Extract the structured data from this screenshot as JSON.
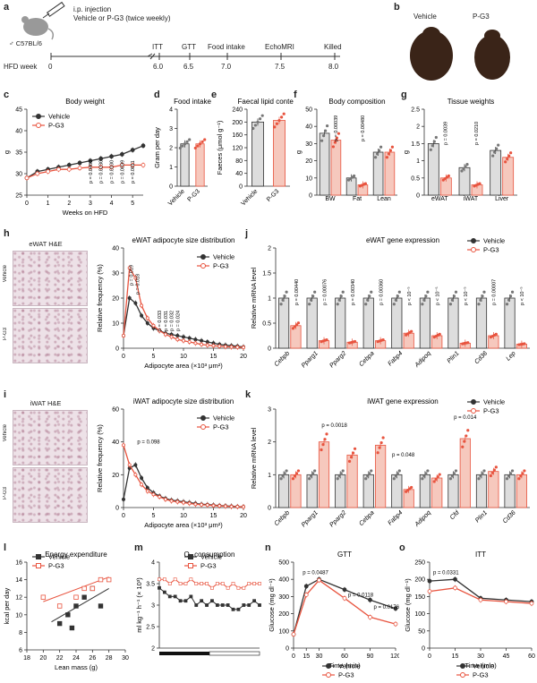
{
  "panel_labels": {
    "a": "a",
    "b": "b",
    "c": "c",
    "d": "d",
    "e": "e",
    "f": "f",
    "g": "g",
    "h": "h",
    "i": "i",
    "j": "j",
    "k": "k",
    "l": "l",
    "m": "m",
    "n": "n",
    "o": "o"
  },
  "colors": {
    "vehicle": "#333333",
    "pg3": "#e8543f",
    "pg3_fill": "#f6c8bd",
    "vehicle_fill": "#dddddd"
  },
  "legend": {
    "vehicle": "Vehicle",
    "pg3": "P-G3"
  },
  "panel_a": {
    "mouse_strain": "♂ C57BL/6",
    "injection_line1": "i.p. injection",
    "injection_line2": "Vehicle or P-G3 (twice weekly)",
    "axis_label": "HFD week",
    "start_tick": "0",
    "events": [
      {
        "label": "ITT",
        "week": "6.0"
      },
      {
        "label": "GTT",
        "week": "6.5"
      },
      {
        "label": "Food intake",
        "week": "7.0"
      },
      {
        "label": "EchoMRI",
        "week": "7.5"
      },
      {
        "label": "Killed",
        "week": "8.0"
      }
    ]
  },
  "panel_b": {
    "vehicle": "Vehicle",
    "pg3": "P-G3"
  },
  "panel_h_images": {
    "title": "eWAT H&E",
    "row1": "Vehicle",
    "row2": "P-G3"
  },
  "panel_i_images": {
    "title": "iWAT H&E",
    "row1": "Vehicle",
    "row2": "P-G3"
  },
  "chart_data": [
    {
      "id": "c",
      "type": "line",
      "title": "Body weight",
      "xlabel": "Weeks on HFD",
      "ylabel": "g",
      "xlim": [
        0,
        5.5
      ],
      "ylim": [
        25,
        45
      ],
      "xticks": [
        0,
        1,
        2,
        3,
        4,
        5
      ],
      "yticks": [
        25,
        30,
        35,
        40,
        45
      ],
      "x": [
        0,
        0.5,
        1,
        1.5,
        2,
        2.5,
        3,
        3.5,
        4,
        4.5,
        5,
        5.5
      ],
      "series": [
        {
          "name": "Vehicle",
          "values": [
            29,
            30.5,
            31,
            31.5,
            32,
            32.5,
            33,
            33.5,
            34,
            34.5,
            35.5,
            36.5
          ]
        },
        {
          "name": "P-G3",
          "values": [
            29,
            30,
            30.5,
            31,
            31,
            31.3,
            31.5,
            31.5,
            31.5,
            32,
            32,
            32
          ]
        }
      ],
      "annotations": [
        "p = 0.0480",
        "p = 0.0230",
        "p = 0.0100",
        "p = 0.0039",
        "p = 0.0011"
      ]
    },
    {
      "id": "d",
      "type": "bar",
      "title": "Food intake",
      "ylabel": "Gram per day",
      "ylim": [
        0,
        4
      ],
      "yticks": [
        0,
        1,
        2,
        3,
        4
      ],
      "categories": [
        "Vehicle",
        "P-G3"
      ],
      "values": [
        2.2,
        2.2
      ]
    },
    {
      "id": "e",
      "type": "bar",
      "title": "Faecal lipid content",
      "ylabel": "Faeces (μmol g⁻¹)",
      "ylim": [
        0,
        240
      ],
      "yticks": [
        0,
        40,
        80,
        120,
        160,
        200,
        240
      ],
      "categories": [
        "Vehicle",
        "P-G3"
      ],
      "values": [
        200,
        205
      ]
    },
    {
      "id": "f",
      "type": "bar",
      "title": "Body composition",
      "ylabel": "g",
      "ylim": [
        0,
        50
      ],
      "yticks": [
        0,
        10,
        20,
        30,
        40,
        50
      ],
      "categories": [
        "BW",
        "Fat",
        "Lean"
      ],
      "series": [
        {
          "name": "Vehicle",
          "values": [
            36,
            10,
            25
          ]
        },
        {
          "name": "P-G3",
          "values": [
            32,
            6,
            25
          ]
        }
      ],
      "annotations": [
        "p = 0.00039",
        "p = 0.00480"
      ]
    },
    {
      "id": "g",
      "type": "bar",
      "title": "Tissue weights",
      "ylabel": "g",
      "ylim": [
        0,
        2.5
      ],
      "yticks": [
        0,
        0.5,
        1.0,
        1.5,
        2.0,
        2.5
      ],
      "categories": [
        "eWAT",
        "iWAT",
        "Liver"
      ],
      "series": [
        {
          "name": "Vehicle",
          "values": [
            1.5,
            0.8,
            1.3
          ]
        },
        {
          "name": "P-G3",
          "values": [
            0.5,
            0.3,
            1.1
          ]
        }
      ],
      "annotations": [
        "p = 0.0039",
        "p = 0.0210"
      ]
    },
    {
      "id": "h",
      "type": "line",
      "title": "eWAT adipocyte size distribution",
      "xlabel": "Adipocyte area (×10³ μm²)",
      "ylabel": "Relative frequency (%)",
      "xlim": [
        0,
        20
      ],
      "ylim": [
        0,
        40
      ],
      "xticks": [
        0,
        5,
        10,
        15,
        20
      ],
      "yticks": [
        0,
        10,
        20,
        30,
        40
      ],
      "x": [
        0,
        1,
        2,
        3,
        4,
        5,
        6,
        7,
        8,
        9,
        10,
        11,
        12,
        13,
        14,
        15,
        16,
        17,
        18,
        19,
        20
      ],
      "series": [
        {
          "name": "Vehicle",
          "values": [
            5,
            20,
            18,
            13,
            10,
            8,
            7,
            6,
            5.5,
            5,
            4.5,
            4,
            3.5,
            3,
            2.5,
            2,
            1.5,
            1.2,
            1,
            0.8,
            0.5
          ]
        },
        {
          "name": "P-G3",
          "values": [
            5,
            32,
            28,
            17,
            12,
            9,
            7,
            5.5,
            4.5,
            3.5,
            3,
            2.5,
            2,
            1.5,
            1.2,
            1,
            0.8,
            0.6,
            0.5,
            0.4,
            0.3
          ]
        }
      ],
      "annotations": [
        "p = 0.019",
        "p = 0.018",
        "p = 0.033",
        "p = 0.031",
        "p = 0.032",
        "p = 0.024"
      ]
    },
    {
      "id": "j",
      "type": "bar",
      "title": "eWAT gene expression",
      "ylabel": "Relative mRNA level",
      "ylim": [
        0,
        2.0
      ],
      "yticks": [
        0,
        0.5,
        1.0,
        1.5,
        2.0
      ],
      "categories": [
        "Cebpb",
        "Pparg1",
        "Pparg2",
        "Cebpa",
        "Fabp4",
        "Adipoq",
        "Plin1",
        "Cd36",
        "Lep"
      ],
      "series": [
        {
          "name": "Vehicle",
          "values": [
            1.0,
            1.0,
            1.0,
            1.0,
            1.0,
            1.0,
            1.0,
            1.0,
            1.0
          ]
        },
        {
          "name": "P-G3",
          "values": [
            0.45,
            0.15,
            0.12,
            0.15,
            0.3,
            0.25,
            0.1,
            0.25,
            0.08
          ]
        }
      ],
      "annotations": [
        "p = 0.00440",
        "p = 0.00076",
        "p = 0.00340",
        "p = 0.00360",
        "p < 10⁻⁵",
        "p < 10⁻⁵",
        "p < 10⁻⁵",
        "p = 0.00007",
        "p < 10⁻⁵"
      ]
    },
    {
      "id": "i",
      "type": "line",
      "title": "iWAT adipocyte size distribution",
      "xlabel": "Adipocyte area (×10³ μm²)",
      "ylabel": "Relative frequency (%)",
      "xlim": [
        0,
        20
      ],
      "ylim": [
        0,
        60
      ],
      "xticks": [
        0,
        5,
        10,
        15,
        20
      ],
      "yticks": [
        0,
        20,
        40,
        60
      ],
      "x": [
        0,
        1,
        2,
        3,
        4,
        5,
        6,
        7,
        8,
        9,
        10,
        11,
        12,
        13,
        14,
        15,
        16,
        17,
        18,
        19,
        20
      ],
      "series": [
        {
          "name": "Vehicle",
          "values": [
            5,
            24,
            26,
            18,
            12,
            9,
            7,
            5.5,
            4.5,
            4,
            3.5,
            3,
            2.5,
            2,
            1.8,
            1.5,
            1.2,
            1,
            0.8,
            0.6,
            0.5
          ]
        },
        {
          "name": "P-G3",
          "values": [
            38,
            26,
            20,
            14,
            10,
            8,
            6.5,
            5,
            4,
            3.5,
            3,
            2.5,
            2,
            1.7,
            1.5,
            1.2,
            1,
            0.8,
            0.6,
            0.5,
            0.4
          ]
        }
      ],
      "annotations": [
        "p = 0.098"
      ]
    },
    {
      "id": "k",
      "type": "bar",
      "title": "iWAT gene expression",
      "ylabel": "Relative mRNA level",
      "ylim": [
        0,
        3
      ],
      "yticks": [
        0,
        1,
        2,
        3
      ],
      "categories": [
        "Cebpb",
        "Pparg1",
        "Pparg2",
        "Cebpa",
        "Fabp4",
        "Adipoq",
        "Cfd",
        "Plin1",
        "Cd36"
      ],
      "series": [
        {
          "name": "Vehicle",
          "values": [
            1.0,
            1.0,
            1.0,
            1.0,
            1.0,
            1.0,
            1.0,
            1.0,
            1.0
          ]
        },
        {
          "name": "P-G3",
          "values": [
            1.0,
            2.0,
            1.6,
            1.9,
            0.55,
            0.9,
            2.1,
            1.1,
            1.0
          ]
        }
      ],
      "annotations": [
        "p = 0.0018",
        "p = 0.048",
        "p = 0.014"
      ]
    },
    {
      "id": "l",
      "type": "scatter",
      "title": "Energy expenditure",
      "xlabel": "Lean mass (g)",
      "ylabel": "kcal per day",
      "xlim": [
        18,
        30
      ],
      "ylim": [
        6,
        16
      ],
      "xticks": [
        18,
        20,
        22,
        24,
        26,
        28,
        30
      ],
      "yticks": [
        6,
        8,
        10,
        12,
        14,
        16
      ],
      "series": [
        {
          "name": "Vehicle",
          "points": [
            [
              22,
              9
            ],
            [
              23,
              10
            ],
            [
              24,
              11
            ],
            [
              25,
              12
            ],
            [
              26,
              13
            ],
            [
              27,
              11
            ],
            [
              23.5,
              8.5
            ]
          ],
          "fit": [
            [
              21,
              9.2
            ],
            [
              28,
              13
            ]
          ]
        },
        {
          "name": "P-G3",
          "points": [
            [
              20,
              12
            ],
            [
              22,
              11
            ],
            [
              24,
              12
            ],
            [
              25,
              13
            ],
            [
              26,
              13
            ],
            [
              27,
              14
            ],
            [
              28,
              14
            ]
          ],
          "fit": [
            [
              20,
              11.5
            ],
            [
              28,
              14.3
            ]
          ]
        }
      ]
    },
    {
      "id": "m",
      "type": "line",
      "title": "O₂ consumption",
      "ylabel": "ml kg⁻¹ h⁻¹ (× 10³)",
      "ylim": [
        2.0,
        4.0
      ],
      "yticks": [
        2.0,
        2.5,
        3.0,
        3.5,
        4.0
      ],
      "series": [
        {
          "name": "Vehicle",
          "values": [
            3.4,
            3.3,
            3.2,
            3.2,
            3.1,
            3.1,
            3.2,
            3.0,
            3.1,
            3.0,
            3.1,
            3.0,
            3.0,
            3.0,
            2.9,
            2.9,
            3.0,
            3.0,
            3.1,
            3.0
          ]
        },
        {
          "name": "P-G3",
          "values": [
            3.6,
            3.6,
            3.5,
            3.6,
            3.5,
            3.5,
            3.6,
            3.5,
            3.5,
            3.5,
            3.4,
            3.5,
            3.5,
            3.4,
            3.5,
            3.4,
            3.4,
            3.5,
            3.5,
            3.5
          ]
        }
      ]
    },
    {
      "id": "n",
      "type": "line",
      "title": "GTT",
      "xlabel": "Time (min)",
      "ylabel": "Glucose (mg dl⁻¹)",
      "xlim": [
        0,
        120
      ],
      "ylim": [
        0,
        500
      ],
      "xticks": [
        0,
        15,
        30,
        60,
        90,
        120
      ],
      "yticks": [
        0,
        100,
        200,
        300,
        400,
        500
      ],
      "x": [
        0,
        15,
        30,
        60,
        90,
        120
      ],
      "series": [
        {
          "name": "Vehicle",
          "values": [
            80,
            360,
            400,
            340,
            280,
            230
          ]
        },
        {
          "name": "P-G3",
          "values": [
            80,
            310,
            395,
            290,
            180,
            140
          ]
        }
      ],
      "annotations": [
        "p = 0.0487",
        "p = 0.0118",
        "p = 0.0176"
      ]
    },
    {
      "id": "o",
      "type": "line",
      "title": "ITT",
      "xlabel": "Time (min)",
      "ylabel": "Glucose (mg dl⁻¹)",
      "xlim": [
        0,
        60
      ],
      "ylim": [
        0,
        250
      ],
      "xticks": [
        0,
        15,
        30,
        45,
        60
      ],
      "yticks": [
        0,
        50,
        100,
        150,
        200,
        250
      ],
      "x": [
        0,
        15,
        30,
        45,
        60
      ],
      "series": [
        {
          "name": "Vehicle",
          "values": [
            195,
            200,
            145,
            140,
            135
          ]
        },
        {
          "name": "P-G3",
          "values": [
            165,
            175,
            140,
            135,
            130
          ]
        }
      ],
      "annotations": [
        "p = 0.0331"
      ]
    }
  ]
}
